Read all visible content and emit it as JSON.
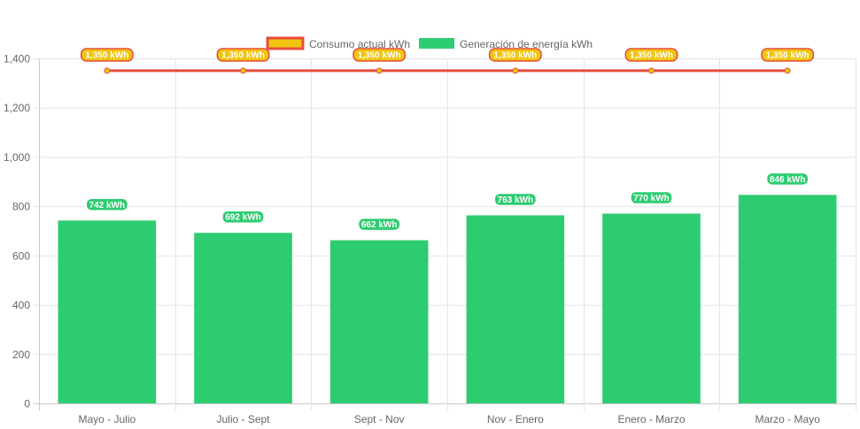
{
  "chart_data": {
    "type": "bar",
    "categories": [
      "Mayo - Julio",
      "Julio - Sept",
      "Sept - Nov",
      "Nov - Enero",
      "Enero - Marzo",
      "Marzo - Mayo"
    ],
    "series": [
      {
        "name": "Consumo actual kWh",
        "type": "line",
        "values": [
          1350,
          1350,
          1350,
          1350,
          1350,
          1350
        ],
        "labels": [
          "1,350 kWh",
          "1,350 kWh",
          "1,350 kWh",
          "1,350 kWh",
          "1,350 kWh",
          "1,350 kWh"
        ],
        "color": "#e74c3c",
        "fill": "#f1c40f"
      },
      {
        "name": "Generación de energía kWh",
        "type": "bar",
        "values": [
          742,
          692,
          662,
          763,
          770,
          846
        ],
        "labels": [
          "742 kWh",
          "692 kWh",
          "662 kWh",
          "763 kWh",
          "770 kWh",
          "846 kWh"
        ],
        "color": "#2ecc71"
      }
    ],
    "ylim": [
      0,
      1400
    ],
    "yticks": [
      0,
      200,
      400,
      600,
      800,
      1000,
      1200,
      1400
    ],
    "ytick_labels": [
      "0",
      "200",
      "400",
      "600",
      "800",
      "1,000",
      "1,200",
      "1,400"
    ],
    "grid": true,
    "legend": "top"
  }
}
